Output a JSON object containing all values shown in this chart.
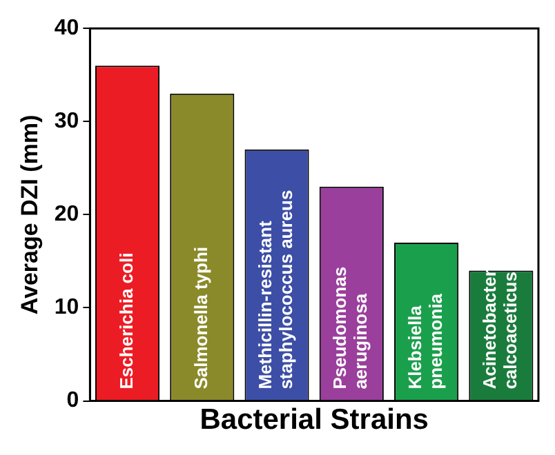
{
  "chart_data": {
    "type": "bar",
    "xlabel": "Bacterial Strains",
    "ylabel": "Average DZI (mm)",
    "categories": [
      "Escherichia coli",
      "Salmonella typhi",
      "Methicillin-resistant staphylococcus aureus",
      "Pseudomonas aeruginosa",
      "Klebsiella pneumonia",
      "Acinetobacter calcoaceticus"
    ],
    "values": [
      36,
      33,
      27,
      23,
      17,
      14
    ],
    "colors": [
      "#ec1c24",
      "#8a8a2a",
      "#3c4ea6",
      "#9a3f9c",
      "#1aa04c",
      "#1a7c3c"
    ],
    "ylim": [
      0,
      40
    ],
    "yticks": [
      0,
      10,
      20,
      30,
      40
    ],
    "grid": false,
    "legend": false
  }
}
